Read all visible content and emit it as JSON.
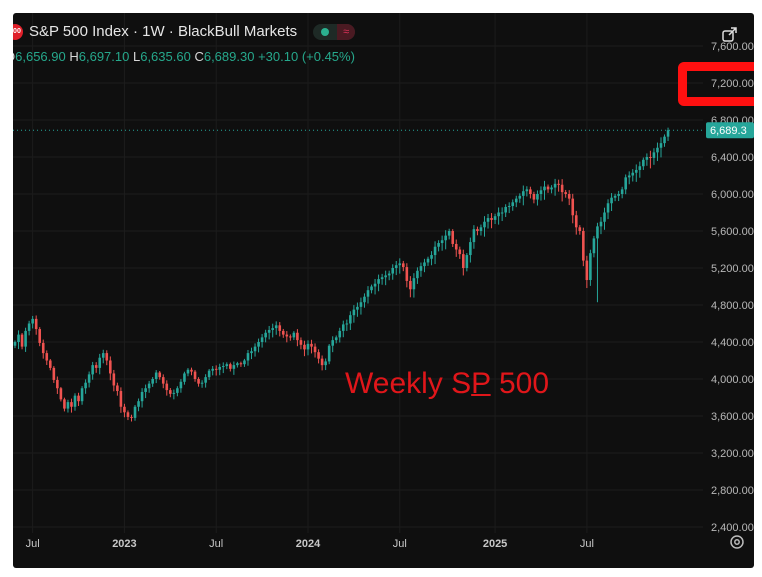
{
  "header": {
    "logo_text": "500",
    "title": "S&P 500 Index · 1W · BlackBull Markets",
    "ohlc": {
      "o_label": "O",
      "o": "6,656.90",
      "h_label": "H",
      "h": "6,697.10",
      "l_label": "L",
      "l": "6,635.60",
      "c_label": "C",
      "c": "6,689.30",
      "change": "+30.10 (+0.45%)"
    }
  },
  "annotation": {
    "text_a": "Weekly S",
    "text_b": "P",
    "text_c": " 500"
  },
  "icons": {
    "expand": "expand-icon",
    "settings": "gear-icon",
    "wave": "≈"
  },
  "colors": {
    "up": "#26a69a",
    "down": "#ef5350",
    "annotation": "#e0161a",
    "highlight_box": "#ff1010",
    "last_price_bg": "#26a69a"
  },
  "chart_data": {
    "type": "candlestick",
    "title": "S&P 500 Index · 1W · BlackBull Markets",
    "interval": "1W",
    "ylim": [
      2400,
      7600
    ],
    "y_ticks": [
      "7,600.00",
      "7,200.00",
      "6,800.00",
      "6,400.00",
      "6,000.00",
      "5,600.00",
      "5,200.00",
      "4,800.00",
      "4,400.00",
      "4,000.00",
      "3,600.00",
      "3,200.00",
      "2,800.00",
      "2,400.00"
    ],
    "y_tick_values": [
      7600,
      7200,
      6800,
      6400,
      6000,
      5600,
      5200,
      4800,
      4400,
      4000,
      3600,
      3200,
      2800,
      2400
    ],
    "x_ticks": [
      "Jul",
      "2023",
      "Jul",
      "2024",
      "Jul",
      "2025",
      "Jul"
    ],
    "x_tick_week_index": [
      5,
      31,
      57,
      83,
      109,
      136,
      162
    ],
    "last_price": 6689.3,
    "last_price_label": "6,689.3",
    "highlighted_level": "7,200.0",
    "weekly_close": [
      4400,
      4480,
      4350,
      4520,
      4600,
      4650,
      4540,
      4390,
      4280,
      4200,
      4120,
      3990,
      3900,
      3780,
      3680,
      3750,
      3700,
      3820,
      3760,
      3900,
      3960,
      4050,
      4150,
      4120,
      4230,
      4280,
      4200,
      4060,
      3930,
      3870,
      3700,
      3640,
      3590,
      3580,
      3700,
      3760,
      3860,
      3900,
      3950,
      4000,
      4070,
      4020,
      3950,
      3880,
      3840,
      3850,
      3900,
      3970,
      4060,
      4100,
      4080,
      4000,
      3950,
      3960,
      4020,
      4090,
      4110,
      4100,
      4130,
      4140,
      4160,
      4110,
      4150,
      4170,
      4160,
      4200,
      4280,
      4300,
      4350,
      4400,
      4450,
      4500,
      4530,
      4550,
      4580,
      4520,
      4480,
      4460,
      4450,
      4500,
      4420,
      4370,
      4320,
      4380,
      4350,
      4290,
      4220,
      4150,
      4190,
      4360,
      4420,
      4450,
      4520,
      4590,
      4600,
      4690,
      4750,
      4780,
      4830,
      4890,
      4960,
      5000,
      5030,
      5080,
      5100,
      5120,
      5140,
      5200,
      5230,
      5250,
      5210,
      5060,
      4970,
      5090,
      5170,
      5220,
      5260,
      5300,
      5340,
      5430,
      5470,
      5500,
      5550,
      5600,
      5460,
      5400,
      5350,
      5200,
      5340,
      5480,
      5620,
      5600,
      5640,
      5700,
      5740,
      5720,
      5760,
      5800,
      5800,
      5860,
      5870,
      5910,
      5950,
      5980,
      6030,
      6050,
      6000,
      5940,
      6000,
      6040,
      6080,
      6050,
      6070,
      6110,
      6100,
      6020,
      6000,
      5950,
      5770,
      5640,
      5600,
      5280,
      5070,
      5360,
      5520,
      5650,
      5700,
      5800,
      5900,
      5960,
      5980,
      6000,
      6050,
      6180,
      6200,
      6230,
      6260,
      6300,
      6370,
      6400,
      6390,
      6450,
      6500,
      6550,
      6620,
      6689.3
    ]
  }
}
